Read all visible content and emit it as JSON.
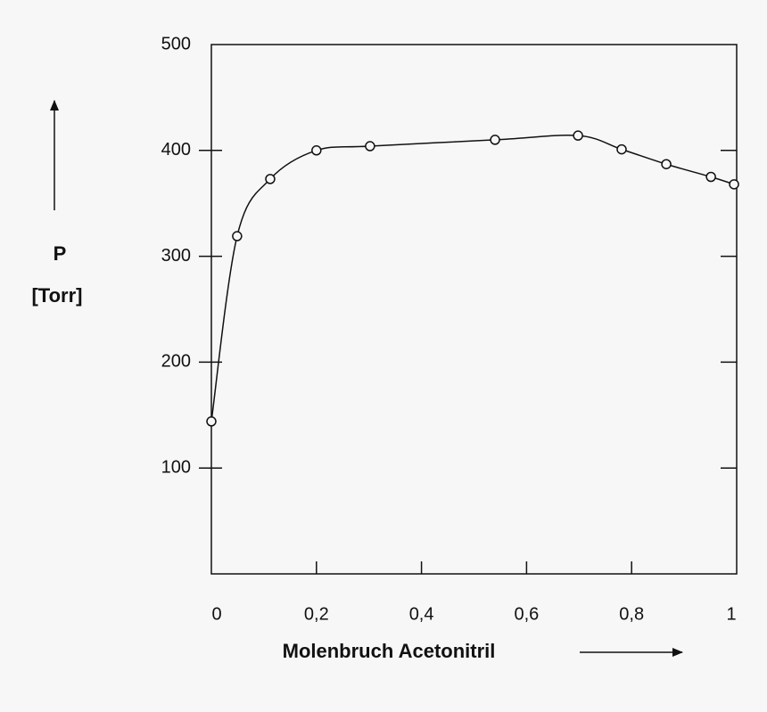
{
  "chart_data": {
    "type": "scatter",
    "x_label": "Molenbruch Acetonitril",
    "y_label": "P",
    "y_unit": "[Torr]",
    "x": [
      0,
      0.049,
      0.112,
      0.2,
      0.302,
      0.54,
      0.698,
      0.781,
      0.866,
      0.951,
      0.995
    ],
    "values": [
      144,
      319,
      373,
      400,
      404,
      410,
      414,
      401,
      387,
      375,
      368
    ],
    "color": "#111111",
    "smooth_line": true,
    "xlim": [
      0,
      1
    ],
    "ylim": [
      0,
      500
    ],
    "xticks": [
      0,
      {
        "value": 0.2,
        "label": "0,2"
      },
      {
        "value": 0.4,
        "label": "0,4"
      },
      {
        "value": 0.6,
        "label": "0,6"
      },
      {
        "value": 0.8,
        "label": "0,8"
      },
      1
    ],
    "yticks": [
      100,
      200,
      300,
      400,
      500
    ]
  }
}
